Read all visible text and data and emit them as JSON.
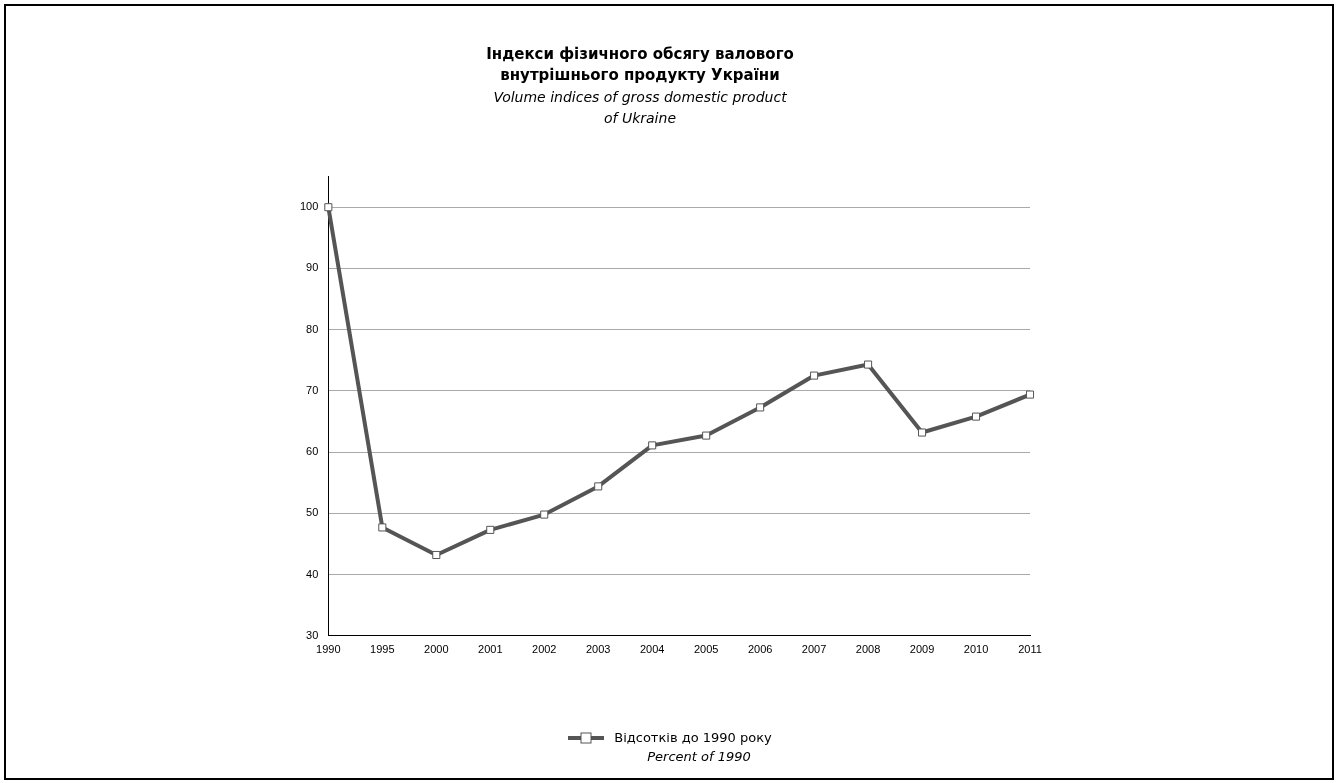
{
  "chart_data": {
    "type": "line",
    "title": "Індекси фізичного обсягу валового внутрішнього продукту України",
    "subtitle": "Volume indices of gross domestic product of Ukraine",
    "categories": [
      "1990",
      "1995",
      "2000",
      "2001",
      "2002",
      "2003",
      "2004",
      "2005",
      "2006",
      "2007",
      "2008",
      "2009",
      "2010",
      "2011"
    ],
    "series": [
      {
        "name": "Відсотків до 1990 року",
        "color": "#555555",
        "values": [
          100,
          47.7,
          43.2,
          47.3,
          49.8,
          54.4,
          61.1,
          62.7,
          67.3,
          72.5,
          74.3,
          63.2,
          65.8,
          69.4
        ]
      }
    ],
    "ylim": [
      30,
      105
    ],
    "yticks": [
      30,
      40,
      50,
      60,
      70,
      80,
      90,
      100
    ],
    "grid": "y",
    "legend": "bottom",
    "marker": "square",
    "line_style": "solid",
    "annotations": [
      "Percent of 1990"
    ]
  }
}
